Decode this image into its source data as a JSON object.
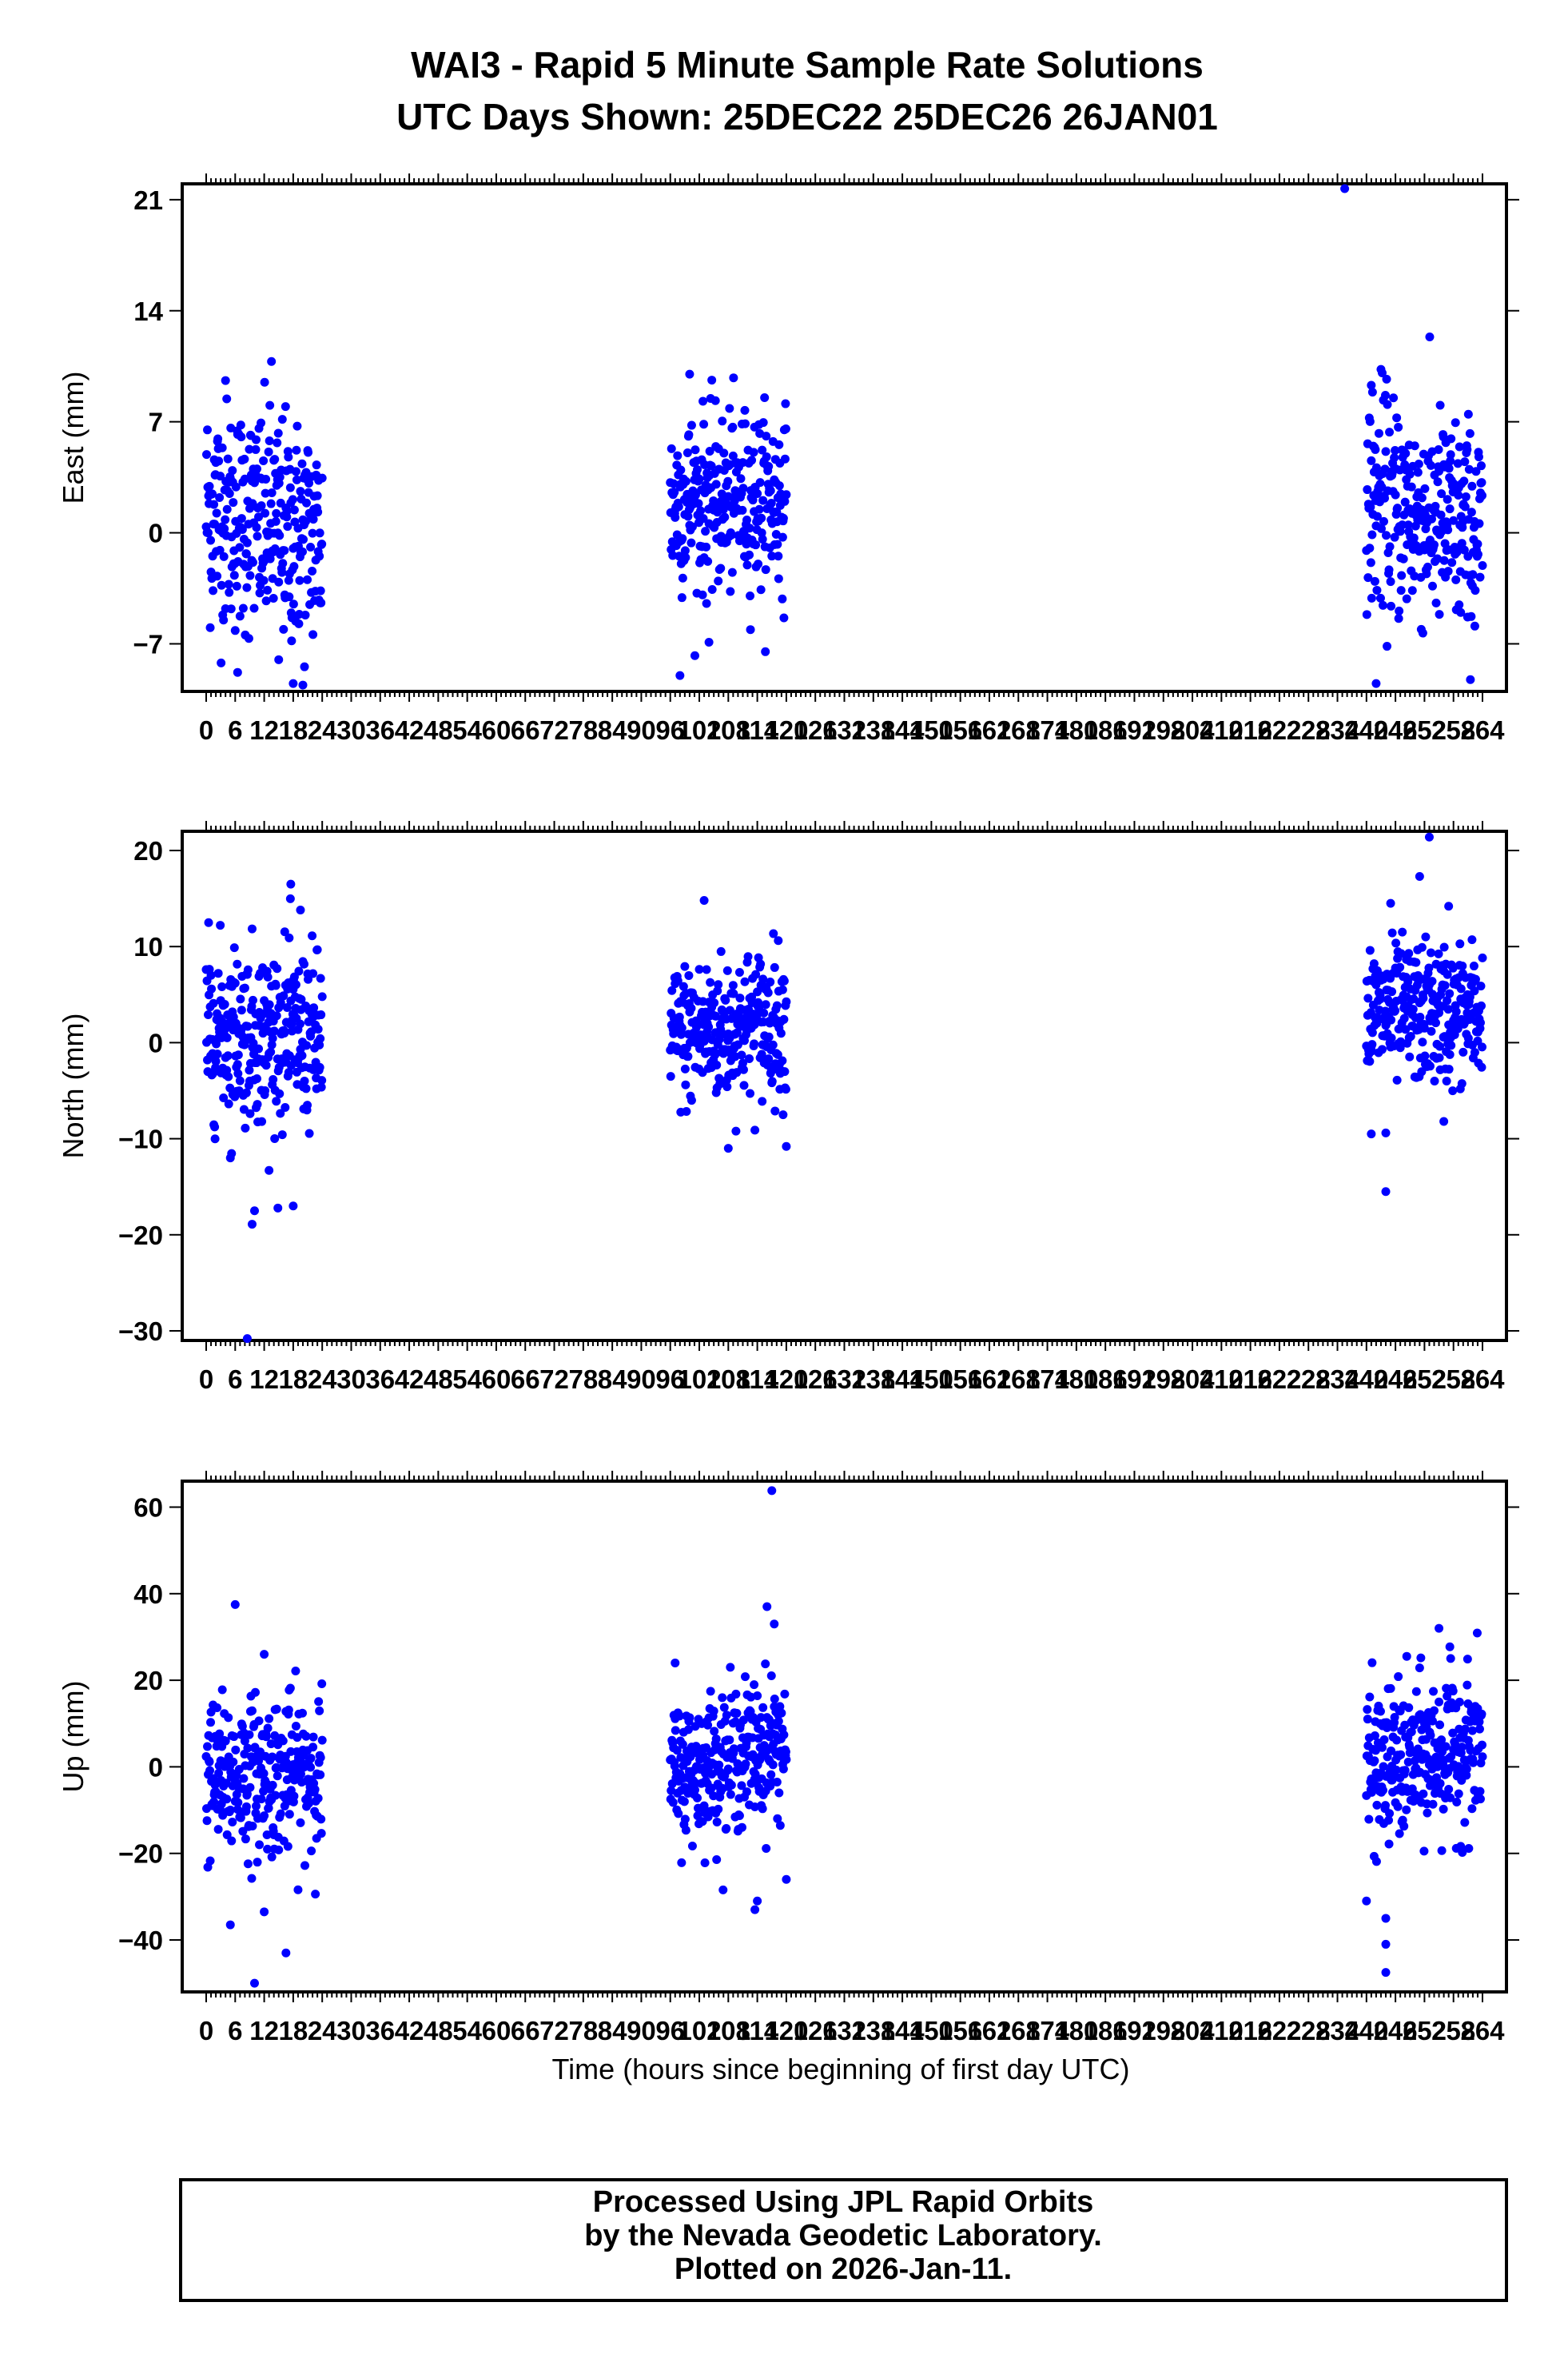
{
  "title": {
    "line1": "WAI3 - Rapid 5 Minute Sample Rate Solutions",
    "line2": "UTC Days Shown:  25DEC22 25DEC26 26JAN01"
  },
  "xlabel": "Time (hours since beginning of first day UTC)",
  "footer": {
    "line1": "Processed Using JPL Rapid Orbits",
    "line2": "by the Nevada Geodetic Laboratory.",
    "line3": "Plotted on 2026-Jan-11."
  },
  "colors": {
    "points": "#0000ff",
    "frame": "#000000"
  },
  "chart_data": [
    {
      "type": "scatter",
      "ylabel": "East (mm)",
      "xlim": [
        0,
        264
      ],
      "ylim": [
        -10,
        22
      ],
      "xticks": [
        0,
        6,
        12,
        18,
        24,
        30,
        36,
        42,
        48,
        54,
        60,
        66,
        72,
        78,
        84,
        90,
        96,
        102,
        108,
        114,
        120,
        126,
        132,
        138,
        144,
        150,
        156,
        162,
        168,
        174,
        180,
        186,
        192,
        198,
        204,
        210,
        216,
        222,
        228,
        234,
        240,
        246,
        252,
        258,
        264
      ],
      "yticks": [
        -7,
        0,
        7,
        14,
        21
      ],
      "grid": false,
      "segments": [
        {
          "x": [
            0,
            24
          ],
          "center": 0.5,
          "spread": 3.6,
          "trend": -2.0
        },
        {
          "x": [
            96,
            120
          ],
          "center": 2.0,
          "spread": 2.8,
          "trend": 0.0
        },
        {
          "x": [
            240,
            264
          ],
          "center": 1.0,
          "spread": 3.5,
          "trend": -2.5
        }
      ],
      "outliers": [
        [
          235.5,
          21.7
        ],
        [
          13.5,
          10.8
        ],
        [
          100,
          10.0
        ],
        [
          4,
          9.6
        ],
        [
          241,
          9.3
        ],
        [
          243,
          10.3
        ],
        [
          18,
          -9.5
        ],
        [
          6.5,
          -8.8
        ],
        [
          98,
          -9.0
        ],
        [
          242,
          -9.5
        ],
        [
          20,
          -9.6
        ],
        [
          15,
          -8.0
        ],
        [
          104,
          -6.9
        ]
      ]
    },
    {
      "type": "scatter",
      "ylabel": "North (mm)",
      "xlim": [
        0,
        264
      ],
      "ylim": [
        -31,
        22
      ],
      "xticks": [
        0,
        6,
        12,
        18,
        24,
        30,
        36,
        42,
        48,
        54,
        60,
        66,
        72,
        78,
        84,
        90,
        96,
        102,
        108,
        114,
        120,
        126,
        132,
        138,
        144,
        150,
        156,
        162,
        168,
        174,
        180,
        186,
        192,
        198,
        204,
        210,
        216,
        222,
        228,
        234,
        240,
        246,
        252,
        258,
        264
      ],
      "yticks": [
        -30,
        -20,
        -10,
        0,
        10,
        20
      ],
      "grid": false,
      "segments": [
        {
          "x": [
            0,
            24
          ],
          "center": 1.0,
          "spread": 4.5,
          "trend": -1.0
        },
        {
          "x": [
            96,
            120
          ],
          "center": 1.5,
          "spread": 3.8,
          "trend": 2.0
        },
        {
          "x": [
            240,
            264
          ],
          "center": 3.0,
          "spread": 3.6,
          "trend": 0.0
        }
      ],
      "outliers": [
        [
          8.5,
          -30.8
        ],
        [
          9.5,
          -18.9
        ],
        [
          10,
          -17.5
        ],
        [
          18,
          -17.0
        ],
        [
          17.5,
          16.5
        ],
        [
          19.5,
          13.8
        ],
        [
          103,
          14.8
        ],
        [
          253,
          21.4
        ],
        [
          251,
          17.3
        ],
        [
          257,
          14.2
        ],
        [
          244,
          -15.5
        ],
        [
          241,
          -9.5
        ],
        [
          108,
          -11.0
        ],
        [
          120,
          -10.8
        ],
        [
          13,
          -13.3
        ],
        [
          5,
          -12.0
        ],
        [
          244,
          -9.4
        ],
        [
          256,
          -8.2
        ],
        [
          245,
          14.5
        ]
      ]
    },
    {
      "type": "scatter",
      "ylabel": "Up (mm)",
      "xlim": [
        0,
        264
      ],
      "ylim": [
        -52,
        66
      ],
      "xticks": [
        0,
        6,
        12,
        18,
        24,
        30,
        36,
        42,
        48,
        54,
        60,
        66,
        72,
        78,
        84,
        90,
        96,
        102,
        108,
        114,
        120,
        126,
        132,
        138,
        144,
        150,
        156,
        162,
        168,
        174,
        180,
        186,
        192,
        198,
        204,
        210,
        216,
        222,
        228,
        234,
        240,
        246,
        252,
        258,
        264
      ],
      "yticks": [
        -40,
        -20,
        0,
        20,
        40,
        60
      ],
      "grid": false,
      "segments": [
        {
          "x": [
            0,
            24
          ],
          "center": -2.0,
          "spread": 9.0,
          "trend": 2.0
        },
        {
          "x": [
            96,
            120
          ],
          "center": 2.0,
          "spread": 8.0,
          "trend": 8.0
        },
        {
          "x": [
            240,
            264
          ],
          "center": 2.0,
          "spread": 9.0,
          "trend": 6.0
        }
      ],
      "outliers": [
        [
          117,
          63.8
        ],
        [
          6,
          37.5
        ],
        [
          116,
          37.0
        ],
        [
          117.5,
          33.0
        ],
        [
          12,
          26.0
        ],
        [
          16.5,
          -43.0
        ],
        [
          10,
          -50.0
        ],
        [
          5,
          -36.5
        ],
        [
          114,
          -31.0
        ],
        [
          113.5,
          -33.0
        ],
        [
          120,
          -26.0
        ],
        [
          244,
          -47.5
        ],
        [
          244,
          -35.0
        ],
        [
          255,
          32.0
        ],
        [
          97,
          24.0
        ],
        [
          12,
          -33.5
        ],
        [
          244,
          -41.0
        ],
        [
          240,
          -31.0
        ]
      ]
    }
  ]
}
